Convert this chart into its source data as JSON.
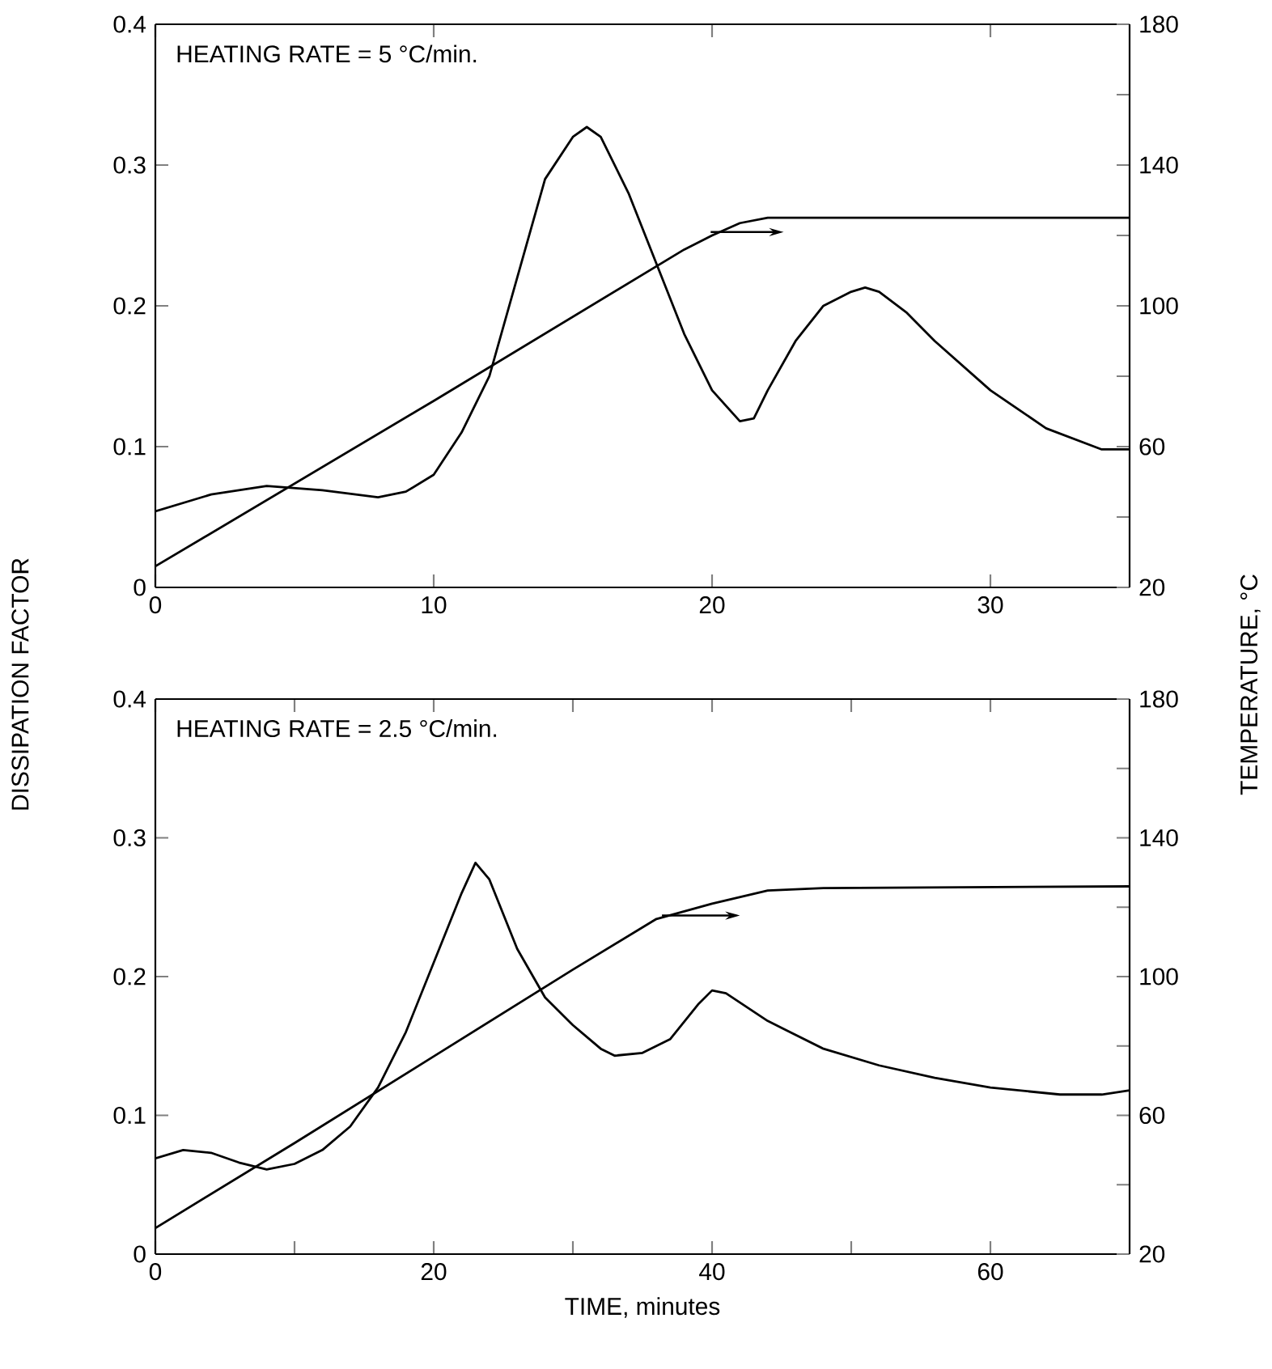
{
  "chart_data": [
    {
      "type": "line",
      "ylabel": "DISSIPATION FACTOR",
      "y2label": "TEMPERATURE, °C",
      "annotations": [
        "HEATING RATE = 5 °C/min."
      ],
      "marker": "none",
      "line_style": "solid",
      "xlim": [
        0,
        35
      ],
      "xticks": [
        0,
        10,
        20,
        30
      ],
      "ylim": [
        0,
        0.4
      ],
      "yticks": [
        0,
        0.1,
        0.2,
        0.3,
        0.4
      ],
      "y2lim": [
        20,
        180
      ],
      "y2ticks": [
        20,
        {
          "value": 40,
          "label": null
        },
        60,
        {
          "value": 80,
          "label": null
        },
        100,
        {
          "value": 120,
          "label": null
        },
        140,
        {
          "value": 160,
          "label": null
        },
        180
      ],
      "series": [
        {
          "color": "#000000",
          "x": [
            0,
            2,
            4,
            6,
            8,
            9,
            10,
            11,
            12,
            13,
            14,
            15,
            15.5,
            16,
            17,
            18,
            19,
            20,
            21,
            21.5,
            22,
            23,
            24,
            25,
            25.5,
            26,
            27,
            28,
            30,
            32,
            34,
            35
          ],
          "values": [
            0.054,
            0.066,
            0.072,
            0.069,
            0.064,
            0.068,
            0.08,
            0.11,
            0.15,
            0.22,
            0.29,
            0.32,
            0.327,
            0.32,
            0.28,
            0.23,
            0.18,
            0.14,
            0.118,
            0.12,
            0.14,
            0.175,
            0.2,
            0.21,
            0.213,
            0.21,
            0.195,
            0.175,
            0.14,
            0.113,
            0.098,
            0.098
          ]
        },
        {
          "color": "#000000",
          "axis": "y2",
          "x": [
            0,
            10,
            19,
            20,
            21,
            22,
            35
          ],
          "values": [
            26,
            73,
            116,
            120,
            123.5,
            125,
            125
          ]
        }
      ]
    },
    {
      "type": "line",
      "xlabel": "TIME, minutes",
      "annotations": [
        "HEATING RATE = 2.5 °C/min."
      ],
      "marker": "none",
      "line_style": "solid",
      "xlim": [
        0,
        70
      ],
      "xticks": [
        0,
        {
          "value": 10,
          "label": null
        },
        20,
        {
          "value": 30,
          "label": null
        },
        40,
        {
          "value": 50,
          "label": null
        },
        60
      ],
      "ylim": [
        0,
        0.4
      ],
      "yticks": [
        0,
        0.1,
        0.2,
        0.3,
        0.4
      ],
      "y2lim": [
        20,
        180
      ],
      "y2ticks": [
        20,
        {
          "value": 40,
          "label": null
        },
        60,
        {
          "value": 80,
          "label": null
        },
        100,
        {
          "value": 120,
          "label": null
        },
        140,
        {
          "value": 160,
          "label": null
        },
        180
      ],
      "series": [
        {
          "color": "#000000",
          "x": [
            0,
            2,
            4,
            6,
            8,
            10,
            12,
            14,
            16,
            18,
            20,
            22,
            23,
            24,
            26,
            28,
            30,
            32,
            33,
            35,
            37,
            39,
            40,
            41,
            44,
            48,
            52,
            56,
            60,
            65,
            68,
            70
          ],
          "values": [
            0.069,
            0.075,
            0.073,
            0.066,
            0.061,
            0.065,
            0.075,
            0.092,
            0.12,
            0.16,
            0.21,
            0.26,
            0.282,
            0.27,
            0.22,
            0.185,
            0.165,
            0.148,
            0.143,
            0.145,
            0.155,
            0.18,
            0.19,
            0.188,
            0.168,
            0.148,
            0.136,
            0.127,
            0.12,
            0.115,
            0.115,
            0.118
          ]
        },
        {
          "color": "#000000",
          "axis": "y2",
          "x": [
            0,
            10,
            20,
            30,
            36,
            40,
            44,
            48,
            70
          ],
          "values": [
            27.5,
            52,
            77,
            102,
            116.6,
            121,
            124.8,
            125.5,
            126
          ]
        }
      ]
    }
  ]
}
